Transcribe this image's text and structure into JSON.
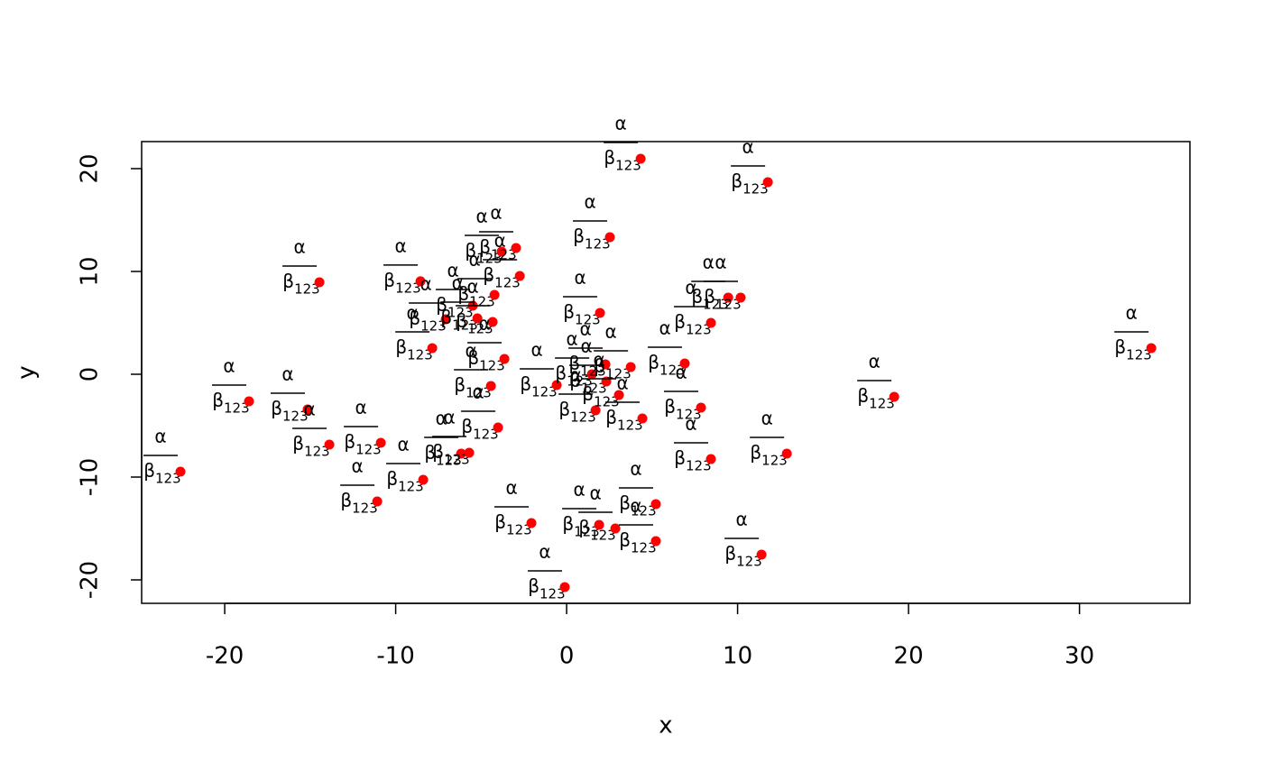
{
  "chart_data": {
    "type": "scatter",
    "xlabel": "x",
    "ylabel": "y",
    "color": "red",
    "point_label": {
      "numerator": "α",
      "denominator": "β",
      "subscript": "123"
    },
    "x": [
      -22.59,
      -18.58,
      -15.15,
      -14.46,
      -13.88,
      -11.08,
      -10.87,
      -8.55,
      -8.39,
      -7.86,
      -7.07,
      -6.17,
      -5.7,
      -5.49,
      -5.22,
      -4.43,
      -4.33,
      -4.22,
      -4.01,
      -3.8,
      -3.64,
      -2.96,
      -2.74,
      -2.06,
      -0.58,
      -0.11,
      1.48,
      1.69,
      1.9,
      1.95,
      2.27,
      2.32,
      2.53,
      2.85,
      3.06,
      3.75,
      4.33,
      4.43,
      5.22,
      5.22,
      6.91,
      7.86,
      8.44,
      8.44,
      9.45,
      10.18,
      11.4,
      11.77,
      12.88,
      19.16,
      34.2
    ],
    "y": [
      -9.47,
      -2.63,
      -3.42,
      8.95,
      -6.84,
      -12.37,
      -6.67,
      9.04,
      -10.26,
      2.54,
      5.35,
      -7.72,
      -7.63,
      6.67,
      5.44,
      -1.14,
      5.09,
      7.72,
      -5.18,
      11.93,
      1.49,
      12.28,
      9.56,
      -14.47,
      -1.05,
      -20.7,
      0,
      -3.51,
      -14.65,
      5.96,
      0.96,
      -0.7,
      13.33,
      -15.0,
      -2.02,
      0.7,
      20.96,
      -4.3,
      -12.63,
      -16.23,
      1.05,
      -3.25,
      5.0,
      -8.25,
      7.46,
      7.46,
      -17.54,
      18.68,
      -7.72,
      -2.19,
      2.54
    ],
    "xlim": [
      -24.86,
      36.46
    ],
    "ylim": [
      -22.28,
      22.63
    ],
    "xticks": [
      -20,
      -10,
      0,
      10,
      20,
      30
    ],
    "yticks": [
      -20,
      -10,
      0,
      10,
      20
    ]
  }
}
